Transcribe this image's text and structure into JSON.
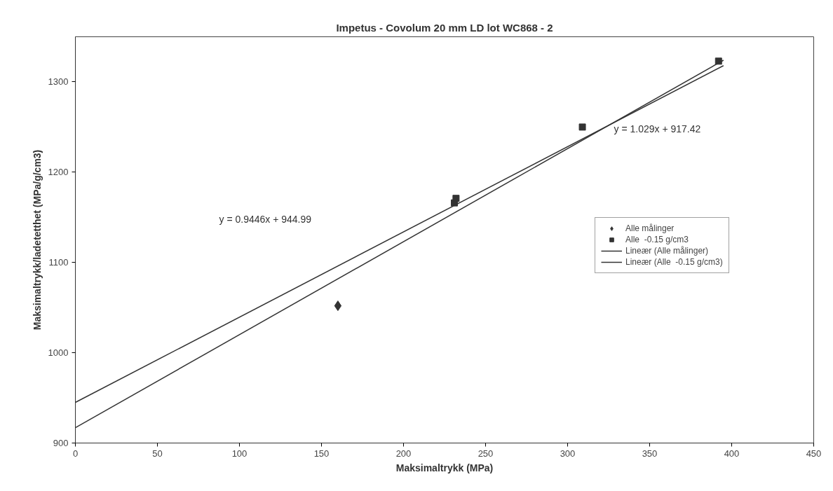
{
  "chart_data": {
    "type": "scatter",
    "title": "Impetus - Covolum 20 mm LD lot WC868 - 2",
    "xlabel": "Maksimaltrykk (MPa)",
    "ylabel": "Maksimaltrykk/ladetetthet (MPa/g/cm3)",
    "xlim": [
      0,
      450
    ],
    "xticks": [
      0,
      50,
      100,
      150,
      200,
      250,
      300,
      350,
      400,
      450
    ],
    "ylim": [
      900,
      1350
    ],
    "yticks": [
      900,
      1000,
      1100,
      1200,
      1300
    ],
    "grid": false,
    "legend": "right",
    "series": [
      {
        "name": "Alle målinger",
        "marker": "diamond",
        "color": "#333333",
        "x": [
          160
        ],
        "values": [
          1052
        ]
      },
      {
        "name": "Alle  -0.15 g/cm3",
        "marker": "square",
        "color": "#333333",
        "x": [
          231,
          232,
          309,
          392
        ],
        "values": [
          1166,
          1171,
          1250,
          1323
        ]
      },
      {
        "name": "Lineær (Alle målinger)",
        "type": "line",
        "marker": "none",
        "color": "#333333",
        "x": [
          0,
          395
        ],
        "values": [
          945,
          1318
        ]
      },
      {
        "name": "Lineær (Alle  -0.15 g/cm3)",
        "type": "line",
        "marker": "none",
        "color": "#333333",
        "x": [
          0,
          395
        ],
        "values": [
          917,
          1324
        ]
      }
    ],
    "annotations": [
      "y = 0.9446x + 944.99",
      "y = 1.029x + 917.42"
    ]
  }
}
